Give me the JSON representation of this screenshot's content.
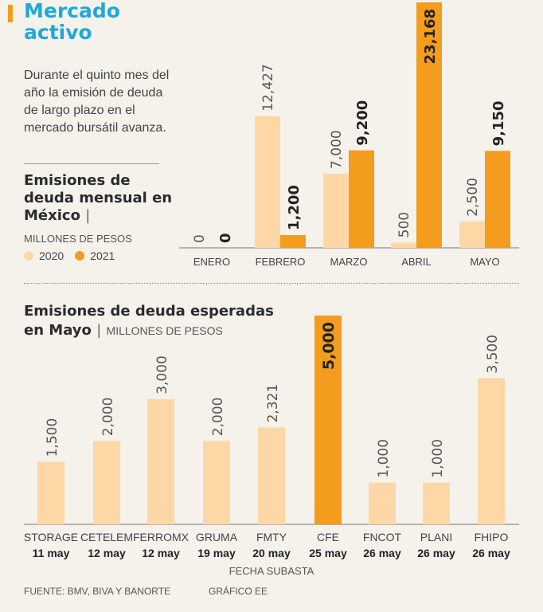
{
  "title": {
    "line1": "Mercado",
    "line2": "activo"
  },
  "intro": "Durante el quinto mes del año la emisión de deuda de largo plazo en el mercado bursátil avanza.",
  "colors": {
    "c2020": "#fdd8a6",
    "c2021": "#f39c1d",
    "title": "#1fa9d8"
  },
  "chart1_heading": {
    "text": "Emisiones de deuda mensual en México",
    "pipe": "|",
    "units": "MILLONES DE PESOS"
  },
  "legend": [
    {
      "label": "2020"
    },
    {
      "label": "2021"
    }
  ],
  "chart2_heading": {
    "line1": "Emisiones de deuda esperadas",
    "line2": "en Mayo",
    "pipe": "|",
    "units": "MILLONES DE PESOS"
  },
  "footer": {
    "source": "FUENTE: BMV, BIVA Y BANORTE",
    "credit": "GRÁFICO EE"
  },
  "chart_data": [
    {
      "type": "bar",
      "title": "Emisiones de deuda mensual en México",
      "ylabel": "MILLONES DE PESOS",
      "categories": [
        "ENERO",
        "FEBRERO",
        "MARZO",
        "ABRIL",
        "MAYO"
      ],
      "series": [
        {
          "name": "2020",
          "values": [
            0,
            12427,
            7000,
            500,
            2500
          ],
          "labels": [
            "0",
            "12,427",
            "7,000",
            "500",
            "2,500"
          ]
        },
        {
          "name": "2021",
          "values": [
            0,
            1200,
            9200,
            23168,
            9150
          ],
          "labels": [
            "0",
            "1,200",
            "9,200",
            "23,168",
            "9,150"
          ]
        }
      ],
      "ylim": [
        0,
        23168
      ]
    },
    {
      "type": "bar",
      "title": "Emisiones de deuda esperadas en Mayo",
      "ylabel": "MILLONES DE PESOS",
      "xlabel": "FECHA SUBASTA",
      "categories": [
        "STORAGE",
        "CETELEM",
        "FERROMX",
        "GRUMA",
        "FMTY",
        "CFE",
        "FNCOT",
        "PLANI",
        "FHIPO"
      ],
      "dates": [
        "11 may",
        "12 may",
        "12 may",
        "19 may",
        "20 may",
        "25 may",
        "26 may",
        "26 may",
        "26 may"
      ],
      "values": [
        1500,
        2000,
        3000,
        2000,
        2321,
        5000,
        1000,
        1000,
        3500
      ],
      "labels": [
        "1,500",
        "2,000",
        "3,000",
        "2,000",
        "2,321",
        "5,000",
        "1,000",
        "1,000",
        "3,500"
      ],
      "highlight": [
        false,
        false,
        false,
        false,
        false,
        true,
        false,
        false,
        false
      ],
      "ylim": [
        0,
        5000
      ]
    }
  ]
}
